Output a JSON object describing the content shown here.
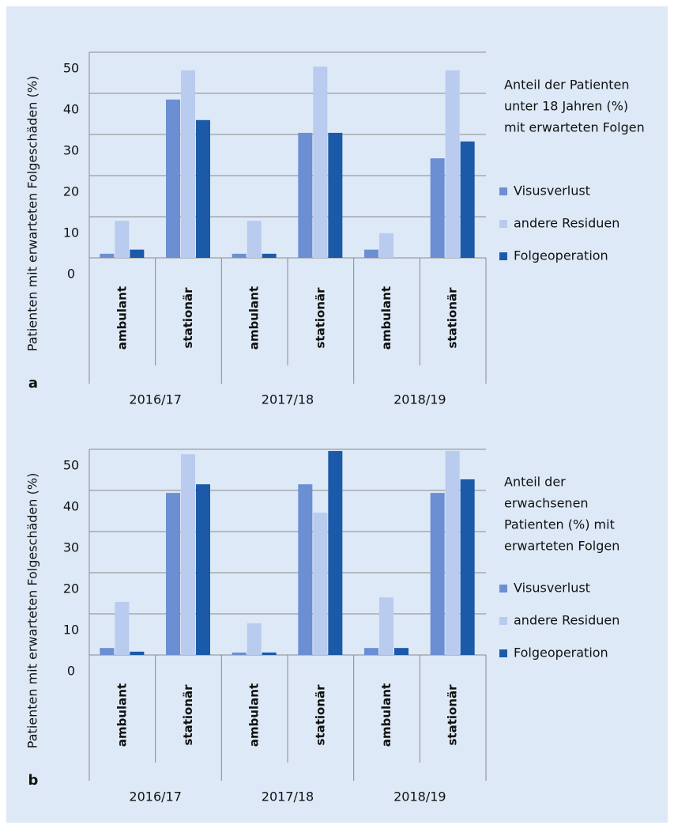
{
  "chart_data": [
    {
      "type": "bar",
      "panel": "a",
      "y_label": "Patienten mit erwarteten Folgeschäden (%)",
      "annotation": [
        "Anteil der Patienten",
        "unter 18 Jahren (%)",
        "mit erwarteten Folgen"
      ],
      "groups": [
        "2016/17",
        "2017/18",
        "2018/19"
      ],
      "categories": [
        "ambulant",
        "stationär",
        "ambulant",
        "stationär",
        "ambulant",
        "stationär"
      ],
      "series": [
        {
          "name": "Visusverlust",
          "color": "#6b8fd2",
          "values": [
            1,
            38.5,
            1,
            30.4,
            2,
            24.2
          ]
        },
        {
          "name": "andere Residuen",
          "color": "#b9cbee",
          "values": [
            9,
            45.6,
            9,
            46.5,
            6,
            45.6
          ]
        },
        {
          "name": "Folgeoperation",
          "color": "#1b5aa8",
          "values": [
            2,
            33.5,
            1,
            30.4,
            0,
            28.3
          ]
        }
      ],
      "ylim": [
        0,
        50
      ],
      "yticks": [
        0,
        10,
        20,
        30,
        40,
        50
      ],
      "grid": true
    },
    {
      "type": "bar",
      "panel": "b",
      "y_label": "Patienten mit erwarteten Folgeschäden (%)",
      "annotation": [
        "Anteil der",
        "erwachsenen",
        "Patienten (%) mit",
        "erwarteten Folgen"
      ],
      "groups": [
        "2016/17",
        "2017/18",
        "2018/19"
      ],
      "categories": [
        "ambulant",
        "stationär",
        "ambulant",
        "stationär",
        "ambulant",
        "stationär"
      ],
      "series": [
        {
          "name": "Visusverlust",
          "color": "#6b8fd2",
          "values": [
            1.7,
            39.4,
            0.6,
            41.5,
            1.7,
            39.4
          ]
        },
        {
          "name": "andere Residuen",
          "color": "#b9cbee",
          "values": [
            12.9,
            48.8,
            7.7,
            34.6,
            14,
            49.6
          ]
        },
        {
          "name": "Folgeoperation",
          "color": "#1b5aa8",
          "values": [
            0.8,
            41.5,
            0.6,
            49.6,
            1.7,
            42.7
          ]
        }
      ],
      "ylim": [
        0,
        50
      ],
      "yticks": [
        0,
        10,
        20,
        30,
        40,
        50
      ],
      "grid": true
    }
  ]
}
